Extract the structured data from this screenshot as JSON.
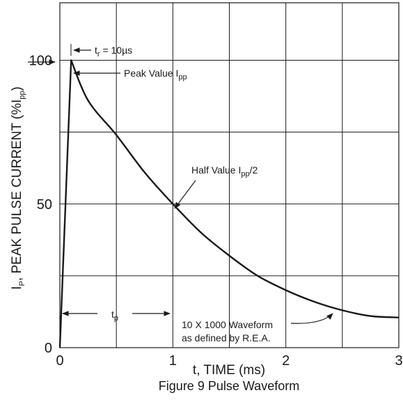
{
  "chart_data": {
    "type": "line",
    "title": "",
    "caption": "Figure 9 Pulse Waveform",
    "xlabel": "t, TIME (ms)",
    "ylabel": {
      "main": "I",
      "sub1": "P",
      "mid": ", PEAK PULSE CURRENT (%I",
      "sub2": "pp",
      "end": ")"
    },
    "xlim": [
      0,
      3
    ],
    "ylim": [
      0,
      120
    ],
    "x_ticks": [
      0,
      1,
      2,
      3
    ],
    "x_tick_labels": [
      "0",
      "1",
      "2",
      "3"
    ],
    "y_ticks": [
      0,
      50,
      100
    ],
    "y_tick_labels": [
      "0",
      "50",
      "100"
    ],
    "grid": true,
    "x_grid": [
      0.5,
      1,
      1.5,
      2,
      2.5,
      3
    ],
    "y_grid": [
      25,
      50,
      75,
      100,
      120
    ],
    "series": [
      {
        "x": [
          0,
          0.1,
          0.25,
          0.5,
          0.75,
          1.0,
          1.25,
          1.5,
          1.75,
          2.0,
          2.25,
          2.5,
          2.75,
          3.0
        ],
        "values": [
          0,
          100,
          86,
          74,
          61,
          50,
          40,
          32,
          25,
          20,
          16,
          13,
          11,
          10.5
        ]
      }
    ],
    "annotations": {
      "rise_time": {
        "main": "t",
        "sub": "r",
        "rest": " = 10µs"
      },
      "peak": {
        "main": "Peak Value I",
        "sub": "pp"
      },
      "half": {
        "main": "Half Value I",
        "sub": "pp",
        "rest": "/2"
      },
      "tp": {
        "main": "t",
        "sub": "p"
      },
      "waveform_line1": "10 X 1000 Waveform",
      "waveform_line2": "as defined by R.E.A."
    }
  },
  "colors": {
    "line": "#1a1a1a",
    "grid": "#1a1a1a",
    "background": "#ffffff"
  }
}
